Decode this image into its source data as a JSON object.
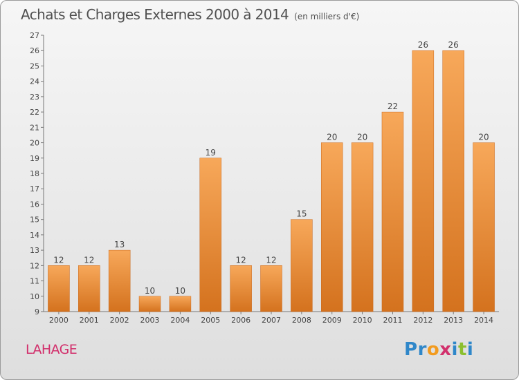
{
  "header": {
    "title": "Achats et Charges Externes 2000 à 2014",
    "unit": "(en milliers d'€)"
  },
  "footer": {
    "place": "LAHAGE",
    "logo": {
      "letters": [
        "P",
        "r",
        "o",
        "x",
        "i",
        "t",
        "i"
      ],
      "colors": [
        "#2f87c9",
        "#2f87c9",
        "#f29b1f",
        "#d2306c",
        "#2f87c9",
        "#8bbf2e",
        "#2f87c9"
      ]
    }
  },
  "colors": {
    "bar_light": "#f7a85a",
    "bar_dark": "#d4721e",
    "place": "#d2306c"
  },
  "chart_data": {
    "type": "bar",
    "title": "Achats et Charges Externes 2000 à 2014",
    "categories": [
      "2000",
      "2001",
      "2002",
      "2003",
      "2004",
      "2005",
      "2006",
      "2007",
      "2008",
      "2009",
      "2010",
      "2011",
      "2012",
      "2013",
      "2014"
    ],
    "values": [
      12,
      12,
      13,
      10,
      10,
      19,
      12,
      12,
      15,
      20,
      20,
      22,
      26,
      26,
      20
    ],
    "ylim": [
      9,
      27
    ],
    "yticks": [
      9,
      10,
      11,
      12,
      13,
      14,
      15,
      16,
      17,
      18,
      19,
      20,
      21,
      22,
      23,
      24,
      25,
      26,
      27
    ],
    "grid": false,
    "legend": "none"
  }
}
